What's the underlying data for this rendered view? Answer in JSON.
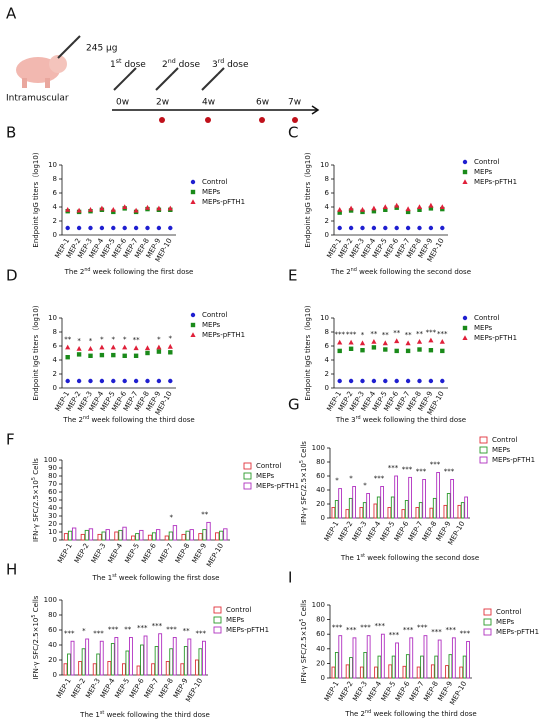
{
  "schematic": {
    "panel": "A",
    "dose_amount": "245 μg",
    "route": "Intramuscular",
    "doses": [
      {
        "pre": "1",
        "sup": "st",
        "post": " dose"
      },
      {
        "pre": "2",
        "sup": "nd",
        "post": " dose"
      },
      {
        "pre": "3",
        "sup": "rd",
        "post": " dose"
      }
    ],
    "weeks": [
      "0w",
      "2w",
      "4w",
      "6w",
      "7w"
    ]
  },
  "chart_data": [
    {
      "type": "dot",
      "panel": "B",
      "y_label": {
        "pre": "Endpoint IgG titers（log10)"
      },
      "x_label": {
        "pre": "The 2",
        "sup": "nd",
        "post": " week following the first dose"
      },
      "categories": [
        "MEP-1",
        "MEP-2",
        "MEP-3",
        "MEP-4",
        "MEP-5",
        "MEP-6",
        "MEP-7",
        "MEP-8",
        "MEP-9",
        "MEP-10"
      ],
      "ylim": [
        0,
        10
      ],
      "yticks": [
        0,
        2,
        4,
        6,
        8,
        10
      ],
      "series": [
        {
          "name": "Control",
          "color": "#1f1fd0",
          "marker": "circle",
          "values": [
            1,
            1,
            1,
            1,
            1,
            1,
            1,
            1,
            1,
            1
          ]
        },
        {
          "name": "MEPs",
          "color": "#1a8a1a",
          "marker": "square",
          "values": [
            3.4,
            3.3,
            3.4,
            3.6,
            3.3,
            3.8,
            3.3,
            3.7,
            3.6,
            3.6
          ]
        },
        {
          "name": "MEPs-pFTH1",
          "color": "#e0203a",
          "marker": "triangle",
          "values": [
            3.6,
            3.5,
            3.6,
            3.8,
            3.6,
            4.0,
            3.5,
            3.9,
            3.8,
            3.8
          ]
        }
      ],
      "significance": [
        null,
        null,
        null,
        null,
        null,
        null,
        null,
        null,
        null,
        null
      ]
    },
    {
      "type": "dot",
      "panel": "C",
      "y_label": {
        "pre": "Endpoint IgG titers（log10)"
      },
      "x_label": {
        "pre": "The 2",
        "sup": "nd",
        "post": " week following the second dose"
      },
      "categories": [
        "MEP-1",
        "MEP-2",
        "MEP-3",
        "MEP-4",
        "MEP-5",
        "MEP-6",
        "MEP-7",
        "MEP-8",
        "MEP-9",
        "MEP-10"
      ],
      "ylim": [
        0,
        10
      ],
      "yticks": [
        0,
        2,
        4,
        6,
        8,
        10
      ],
      "series": [
        {
          "name": "Control",
          "color": "#1f1fd0",
          "marker": "circle",
          "values": [
            1,
            1,
            1,
            1,
            1,
            1,
            1,
            1,
            1,
            1
          ]
        },
        {
          "name": "MEPs",
          "color": "#1a8a1a",
          "marker": "square",
          "values": [
            3.2,
            3.5,
            3.3,
            3.4,
            3.6,
            3.9,
            3.3,
            3.6,
            3.8,
            3.7
          ]
        },
        {
          "name": "MEPs-pFTH1",
          "color": "#e0203a",
          "marker": "triangle",
          "values": [
            3.6,
            3.8,
            3.6,
            3.8,
            4.0,
            4.2,
            3.7,
            4.0,
            4.2,
            4.0
          ]
        }
      ],
      "significance": [
        null,
        null,
        null,
        null,
        null,
        null,
        null,
        null,
        null,
        null
      ]
    },
    {
      "type": "dot",
      "panel": "D",
      "y_label": {
        "pre": "Endpoint IgG titers（log10)"
      },
      "x_label": {
        "pre": "The 2",
        "sup": "nd",
        "post": " week following the third dose"
      },
      "categories": [
        "MEP-1",
        "MEP-2",
        "MEP-3",
        "MEP-4",
        "MEP-5",
        "MEP-6",
        "MEP-7",
        "MEP-8",
        "MEP-9",
        "MEP-10"
      ],
      "ylim": [
        0,
        10
      ],
      "yticks": [
        0,
        2,
        4,
        6,
        8,
        10
      ],
      "series": [
        {
          "name": "Control",
          "color": "#1f1fd0",
          "marker": "circle",
          "values": [
            1,
            1,
            1,
            1,
            1,
            1,
            1,
            1,
            1,
            1
          ]
        },
        {
          "name": "MEPs",
          "color": "#1a8a1a",
          "marker": "square",
          "values": [
            4.4,
            4.8,
            4.6,
            4.7,
            4.7,
            4.6,
            4.6,
            5.0,
            5.2,
            5.1
          ]
        },
        {
          "name": "MEPs-pFTH1",
          "color": "#e0203a",
          "marker": "triangle",
          "values": [
            5.8,
            5.6,
            5.6,
            5.8,
            5.8,
            5.8,
            5.7,
            5.7,
            5.8,
            5.9
          ]
        }
      ],
      "significance": [
        "**",
        "*",
        "*",
        "*",
        "*",
        "*",
        "**",
        null,
        "*",
        "*"
      ]
    },
    {
      "type": "dot",
      "panel": "E",
      "y_label": {
        "pre": "Endpoint IgG titers（log10)"
      },
      "x_label": {
        "pre": "The 3",
        "sup": "rd",
        "post": " week following the third dose"
      },
      "categories": [
        "MEP-1",
        "MEP-2",
        "MEP-3",
        "MEP-4",
        "MEP-5",
        "MEP-6",
        "MEP-7",
        "MEP-8",
        "MEP-9",
        "MEP-10"
      ],
      "ylim": [
        0,
        10
      ],
      "yticks": [
        0,
        2,
        4,
        6,
        8,
        10
      ],
      "series": [
        {
          "name": "Control",
          "color": "#1f1fd0",
          "marker": "circle",
          "values": [
            1,
            1,
            1,
            1,
            1,
            1,
            1,
            1,
            1,
            1
          ]
        },
        {
          "name": "MEPs",
          "color": "#1a8a1a",
          "marker": "square",
          "values": [
            5.3,
            5.6,
            5.4,
            5.8,
            5.5,
            5.3,
            5.3,
            5.5,
            5.4,
            5.3
          ]
        },
        {
          "name": "MEPs-pFTH1",
          "color": "#e0203a",
          "marker": "triangle",
          "values": [
            6.5,
            6.5,
            6.4,
            6.6,
            6.4,
            6.7,
            6.4,
            6.6,
            6.8,
            6.6
          ]
        }
      ],
      "significance": [
        "***",
        "***",
        "*",
        "**",
        "**",
        "**",
        "**",
        "**",
        "***",
        "***"
      ]
    },
    {
      "type": "bar",
      "panel": "F",
      "y_label": {
        "pre": "IFN-γ  SFC/2.5×10",
        "sup": "5",
        "post": " Cells"
      },
      "x_label": {
        "pre": "The 1",
        "sup": "st",
        "post": " week following the first dose"
      },
      "categories": [
        "MEP-1",
        "MEP-2",
        "MEP-3",
        "MEP-4",
        "MEP-5",
        "MEP-6",
        "MEP-7",
        "MEP-8",
        "MEP-9",
        "MEP-10"
      ],
      "ylim": [
        0,
        100
      ],
      "yticks": [
        0,
        10,
        20,
        30,
        40,
        50,
        60,
        70,
        80,
        90,
        100
      ],
      "series": [
        {
          "name": "Control",
          "color": "#e0303a",
          "values": [
            8,
            7,
            7,
            10,
            5,
            6,
            5,
            7,
            8,
            9
          ]
        },
        {
          "name": "MEPs",
          "color": "#2a9a2a",
          "values": [
            11,
            12,
            10,
            12,
            8,
            9,
            10,
            11,
            13,
            11
          ]
        },
        {
          "name": "MEPs-pFTH1",
          "color": "#b030c0",
          "values": [
            15,
            14,
            13,
            16,
            12,
            13,
            18,
            13,
            22,
            14
          ]
        }
      ],
      "significance": [
        null,
        null,
        null,
        null,
        null,
        null,
        "*",
        null,
        "**",
        null
      ]
    },
    {
      "type": "bar",
      "panel": "G",
      "y_label": {
        "pre": "IFN-γ  SFC/2.5×10",
        "sup": "5",
        "post": " Cells"
      },
      "x_label": {
        "pre": "The 1",
        "sup": "st",
        "post": " week following the second dose"
      },
      "categories": [
        "MEP-1",
        "MEP-2",
        "MEP-3",
        "MEP-4",
        "MEP-5",
        "MEP-6",
        "MEP-7",
        "MEP-8",
        "MEP-9",
        "MEP-10"
      ],
      "ylim": [
        0,
        100
      ],
      "yticks": [
        0,
        20,
        40,
        60,
        80,
        100
      ],
      "series": [
        {
          "name": "Control",
          "color": "#e0303a",
          "values": [
            15,
            12,
            15,
            20,
            15,
            12,
            15,
            14,
            18,
            18
          ]
        },
        {
          "name": "MEPs",
          "color": "#2a9a2a",
          "values": [
            25,
            28,
            22,
            30,
            30,
            25,
            22,
            28,
            35,
            22
          ]
        },
        {
          "name": "MEPs-pFTH1",
          "color": "#b030c0",
          "values": [
            42,
            45,
            35,
            45,
            60,
            58,
            55,
            65,
            55,
            30
          ]
        }
      ],
      "significance": [
        "*",
        "*",
        "*",
        "***",
        "***",
        "***",
        "***",
        "***",
        "***",
        null
      ]
    },
    {
      "type": "bar",
      "panel": "H",
      "y_label": {
        "pre": "IFN-γ  SFC/2.5×10",
        "sup": "5",
        "post": " Cells"
      },
      "x_label": {
        "pre": "The 1",
        "sup": "st",
        "post": " week following the third dose"
      },
      "categories": [
        "MEP-1",
        "MEP-2",
        "MEP-3",
        "MEP-4",
        "MEP-5",
        "MEP-6",
        "MEP-7",
        "MEP-8",
        "MEP-9",
        "MEP-10"
      ],
      "ylim": [
        0,
        100
      ],
      "yticks": [
        0,
        20,
        40,
        60,
        80,
        100
      ],
      "series": [
        {
          "name": "Control",
          "color": "#e0303a",
          "values": [
            15,
            18,
            15,
            18,
            15,
            12,
            15,
            18,
            15,
            20
          ]
        },
        {
          "name": "MEPs",
          "color": "#2a9a2a",
          "values": [
            28,
            35,
            28,
            42,
            32,
            40,
            38,
            35,
            38,
            35
          ]
        },
        {
          "name": "MEPs-pFTH1",
          "color": "#b030c0",
          "values": [
            45,
            48,
            45,
            50,
            50,
            52,
            55,
            50,
            48,
            45
          ]
        }
      ],
      "significance": [
        "***",
        "*",
        "***",
        "***",
        "**",
        "***",
        "***",
        "***",
        "**",
        "***"
      ]
    },
    {
      "type": "bar",
      "panel": "I",
      "y_label": {
        "pre": "IFN-γ  SFC/2.5×10",
        "sup": "5",
        "post": " Cells"
      },
      "x_label": {
        "pre": "The 2",
        "sup": "nd",
        "post": " week following the third dose"
      },
      "categories": [
        "MEP-1",
        "MEP-2",
        "MEP-3",
        "MEP-4",
        "MEP-5",
        "MEP-6",
        "MEP-7",
        "MEP-8",
        "MEP-9",
        "MEP-10"
      ],
      "ylim": [
        0,
        100
      ],
      "yticks": [
        0,
        20,
        40,
        60,
        80,
        100
      ],
      "series": [
        {
          "name": "Control",
          "color": "#e0303a",
          "values": [
            15,
            18,
            15,
            15,
            18,
            16,
            15,
            18,
            17,
            15
          ]
        },
        {
          "name": "MEPs",
          "color": "#2a9a2a",
          "values": [
            35,
            28,
            35,
            30,
            30,
            32,
            30,
            30,
            32,
            30
          ]
        },
        {
          "name": "MEPs-pFTH1",
          "color": "#b030c0",
          "values": [
            58,
            55,
            58,
            60,
            48,
            55,
            58,
            52,
            55,
            50
          ]
        }
      ],
      "significance": [
        "***",
        "***",
        "***",
        "***",
        "***",
        "***",
        "***",
        "***",
        "***",
        "***"
      ]
    }
  ]
}
